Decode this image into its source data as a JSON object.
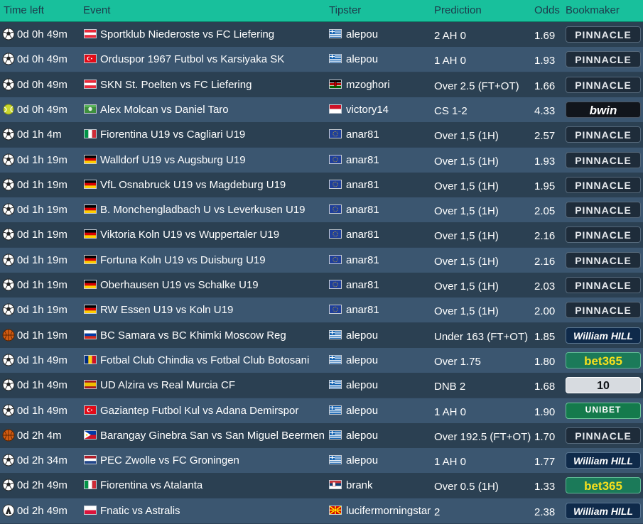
{
  "header": {
    "time_left": "Time left",
    "event": "Event",
    "tipster": "Tipster",
    "prediction": "Prediction",
    "odds": "Odds",
    "bookmaker": "Bookmaker"
  },
  "colors": {
    "header_bg": "#18c09c",
    "row_odd": "#2b4052",
    "row_even": "#3b5670",
    "text": "#ffffff"
  },
  "rows": [
    {
      "sport": "football-icon",
      "time": "0d 0h 49m",
      "event_flag": "austria",
      "event": "Sportklub Niederoste vs FC Liefering",
      "tipster_flag": "greece",
      "tipster": "alepou",
      "prediction": "2 AH 0",
      "odds": "1.69",
      "bookmaker": "PINNACLE",
      "bookmaker_style": "pinnacle"
    },
    {
      "sport": "football-icon",
      "time": "0d 0h 49m",
      "event_flag": "turkey",
      "event": "Orduspor 1967 Futbol vs Karsiyaka SK",
      "tipster_flag": "greece",
      "tipster": "alepou",
      "prediction": "1 AH 0",
      "odds": "1.93",
      "bookmaker": "PINNACLE",
      "bookmaker_style": "pinnacle"
    },
    {
      "sport": "football-icon",
      "time": "0d 0h 49m",
      "event_flag": "austria",
      "event": "SKN St. Poelten vs FC Liefering",
      "tipster_flag": "kenya",
      "tipster": "mzoghori",
      "prediction": "Over 2.5 (FT+OT)",
      "odds": "1.66",
      "bookmaker": "PINNACLE",
      "bookmaker_style": "pinnacle"
    },
    {
      "sport": "tennis-icon",
      "time": "0d 0h 49m",
      "event_flag": "world-green",
      "event": "Alex Molcan vs Daniel Taro",
      "tipster_flag": "indonesia",
      "tipster": "victory14",
      "prediction": "CS 1-2",
      "odds": "4.33",
      "bookmaker": "bwin",
      "bookmaker_style": "bwin"
    },
    {
      "sport": "football-icon",
      "time": "0d 1h 4m",
      "event_flag": "italy",
      "event": "Fiorentina U19 vs Cagliari U19",
      "tipster_flag": "eu",
      "tipster": "anar81",
      "prediction": "Over 1,5 (1H)",
      "odds": "2.57",
      "bookmaker": "PINNACLE",
      "bookmaker_style": "pinnacle"
    },
    {
      "sport": "football-icon",
      "time": "0d 1h 19m",
      "event_flag": "germany",
      "event": "Walldorf U19 vs Augsburg U19",
      "tipster_flag": "eu",
      "tipster": "anar81",
      "prediction": "Over 1,5 (1H)",
      "odds": "1.93",
      "bookmaker": "PINNACLE",
      "bookmaker_style": "pinnacle"
    },
    {
      "sport": "football-icon",
      "time": "0d 1h 19m",
      "event_flag": "germany",
      "event": "VfL Osnabruck U19 vs Magdeburg U19",
      "tipster_flag": "eu",
      "tipster": "anar81",
      "prediction": "Over 1,5 (1H)",
      "odds": "1.95",
      "bookmaker": "PINNACLE",
      "bookmaker_style": "pinnacle"
    },
    {
      "sport": "football-icon",
      "time": "0d 1h 19m",
      "event_flag": "germany",
      "event": "B. Monchengladbach U vs Leverkusen U19",
      "tipster_flag": "eu",
      "tipster": "anar81",
      "prediction": "Over 1,5 (1H)",
      "odds": "2.05",
      "bookmaker": "PINNACLE",
      "bookmaker_style": "pinnacle"
    },
    {
      "sport": "football-icon",
      "time": "0d 1h 19m",
      "event_flag": "germany",
      "event": "Viktoria Koln U19 vs Wuppertaler U19",
      "tipster_flag": "eu",
      "tipster": "anar81",
      "prediction": "Over 1,5 (1H)",
      "odds": "2.16",
      "bookmaker": "PINNACLE",
      "bookmaker_style": "pinnacle"
    },
    {
      "sport": "football-icon",
      "time": "0d 1h 19m",
      "event_flag": "germany",
      "event": "Fortuna Koln U19 vs Duisburg U19",
      "tipster_flag": "eu",
      "tipster": "anar81",
      "prediction": "Over 1,5 (1H)",
      "odds": "2.16",
      "bookmaker": "PINNACLE",
      "bookmaker_style": "pinnacle"
    },
    {
      "sport": "football-icon",
      "time": "0d 1h 19m",
      "event_flag": "germany",
      "event": "Oberhausen U19 vs Schalke U19",
      "tipster_flag": "eu",
      "tipster": "anar81",
      "prediction": "Over 1,5 (1H)",
      "odds": "2.03",
      "bookmaker": "PINNACLE",
      "bookmaker_style": "pinnacle"
    },
    {
      "sport": "football-icon",
      "time": "0d 1h 19m",
      "event_flag": "germany",
      "event": "RW Essen U19 vs Koln U19",
      "tipster_flag": "eu",
      "tipster": "anar81",
      "prediction": "Over 1,5 (1H)",
      "odds": "2.00",
      "bookmaker": "PINNACLE",
      "bookmaker_style": "pinnacle"
    },
    {
      "sport": "basketball-icon",
      "time": "0d 1h 19m",
      "event_flag": "russia",
      "event": "BC Samara vs BC Khimki Moscow Reg",
      "tipster_flag": "greece",
      "tipster": "alepou",
      "prediction": "Under 163 (FT+OT)",
      "odds": "1.85",
      "bookmaker": "William HILL",
      "bookmaker_style": "williamhill"
    },
    {
      "sport": "football-icon",
      "time": "0d 1h 49m",
      "event_flag": "romania",
      "event": "Fotbal Club Chindia vs Fotbal Club Botosani",
      "tipster_flag": "greece",
      "tipster": "alepou",
      "prediction": "Over 1.75",
      "odds": "1.80",
      "bookmaker": "bet365",
      "bookmaker_style": "bet365"
    },
    {
      "sport": "football-icon",
      "time": "0d 1h 49m",
      "event_flag": "spain",
      "event": "UD Alzira vs Real Murcia CF",
      "tipster_flag": "greece",
      "tipster": "alepou",
      "prediction": "DNB 2",
      "odds": "1.68",
      "bookmaker": "10",
      "bookmaker_style": "tenbet"
    },
    {
      "sport": "football-icon",
      "time": "0d 1h 49m",
      "event_flag": "turkey",
      "event": "Gaziantep Futbol Kul vs Adana Demirspor",
      "tipster_flag": "greece",
      "tipster": "alepou",
      "prediction": "1 AH 0",
      "odds": "1.90",
      "bookmaker": "UNIBET",
      "bookmaker_style": "unibet"
    },
    {
      "sport": "basketball-icon",
      "time": "0d 2h 4m",
      "event_flag": "philippines",
      "event": "Barangay Ginebra San vs San Miguel Beermen",
      "tipster_flag": "greece",
      "tipster": "alepou",
      "prediction": "Over 192.5 (FT+OT)",
      "odds": "1.70",
      "bookmaker": "PINNACLE",
      "bookmaker_style": "pinnacle"
    },
    {
      "sport": "football-icon",
      "time": "0d 2h 34m",
      "event_flag": "netherlands",
      "event": "PEC Zwolle vs FC Groningen",
      "tipster_flag": "greece",
      "tipster": "alepou",
      "prediction": "1 AH 0",
      "odds": "1.77",
      "bookmaker": "William HILL",
      "bookmaker_style": "williamhill"
    },
    {
      "sport": "football-icon",
      "time": "0d 2h 49m",
      "event_flag": "italy",
      "event": "Fiorentina vs Atalanta",
      "tipster_flag": "serbia",
      "tipster": "brank",
      "prediction": "Over 0.5 (1H)",
      "odds": "1.33",
      "bookmaker": "bet365",
      "bookmaker_style": "bet365"
    },
    {
      "sport": "esports-icon",
      "time": "0d 2h 49m",
      "event_flag": "poland",
      "event": "Fnatic vs Astralis",
      "tipster_flag": "macedonia",
      "tipster": "lucifermorningstar",
      "prediction": "2",
      "odds": "2.38",
      "bookmaker": "William HILL",
      "bookmaker_style": "williamhill"
    }
  ]
}
